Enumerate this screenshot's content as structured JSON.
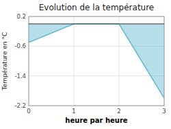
{
  "chart_data": {
    "type": "area",
    "title": "Evolution de la température",
    "x_label": "heure par heure",
    "y_label": "Température en °C",
    "x": [
      0,
      1,
      2,
      3
    ],
    "series": [
      {
        "color": "#60b8d0",
        "values": [
          -0.5,
          0.0,
          0.0,
          -2.0
        ]
      }
    ],
    "xlim": [
      0,
      3
    ],
    "ylim": [
      -2.2,
      0.2
    ],
    "xticks": [
      0,
      1,
      2,
      3
    ],
    "yticks": [
      0.2,
      -0.6,
      -1.4,
      -2.2
    ],
    "grid": true
  }
}
